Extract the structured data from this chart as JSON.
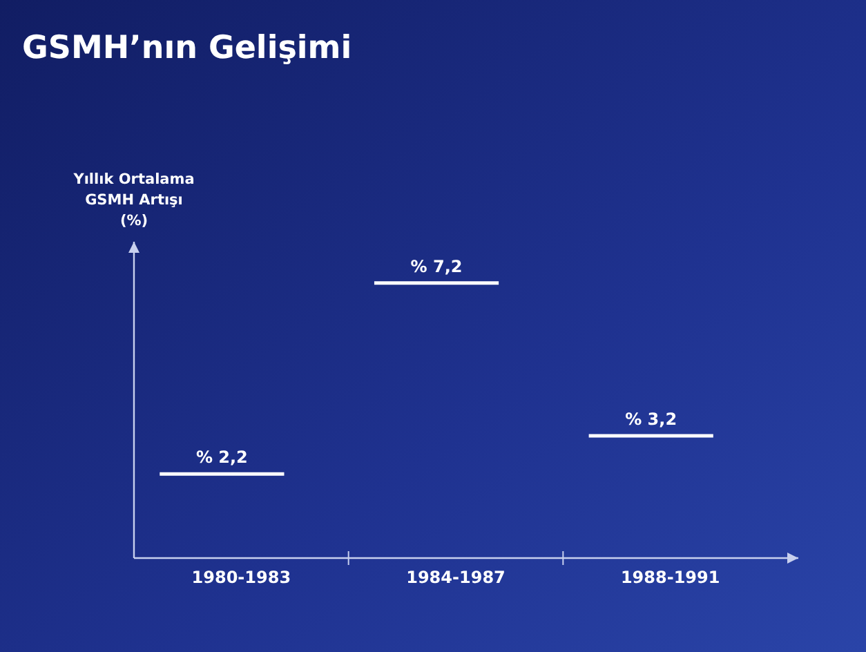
{
  "chart_data": {
    "type": "other",
    "title": "GSMH’nın Gelişimi",
    "ylabel": "Yıllık Ortalama\nGSMH Artışı\n(%)",
    "categories": [
      "1980-1983",
      "1984-1987",
      "1988-1991"
    ],
    "values": [
      2.2,
      7.2,
      3.2
    ],
    "value_labels": [
      "% 2,2",
      "% 7,2",
      "% 3,2"
    ],
    "color": "#ffffff"
  }
}
